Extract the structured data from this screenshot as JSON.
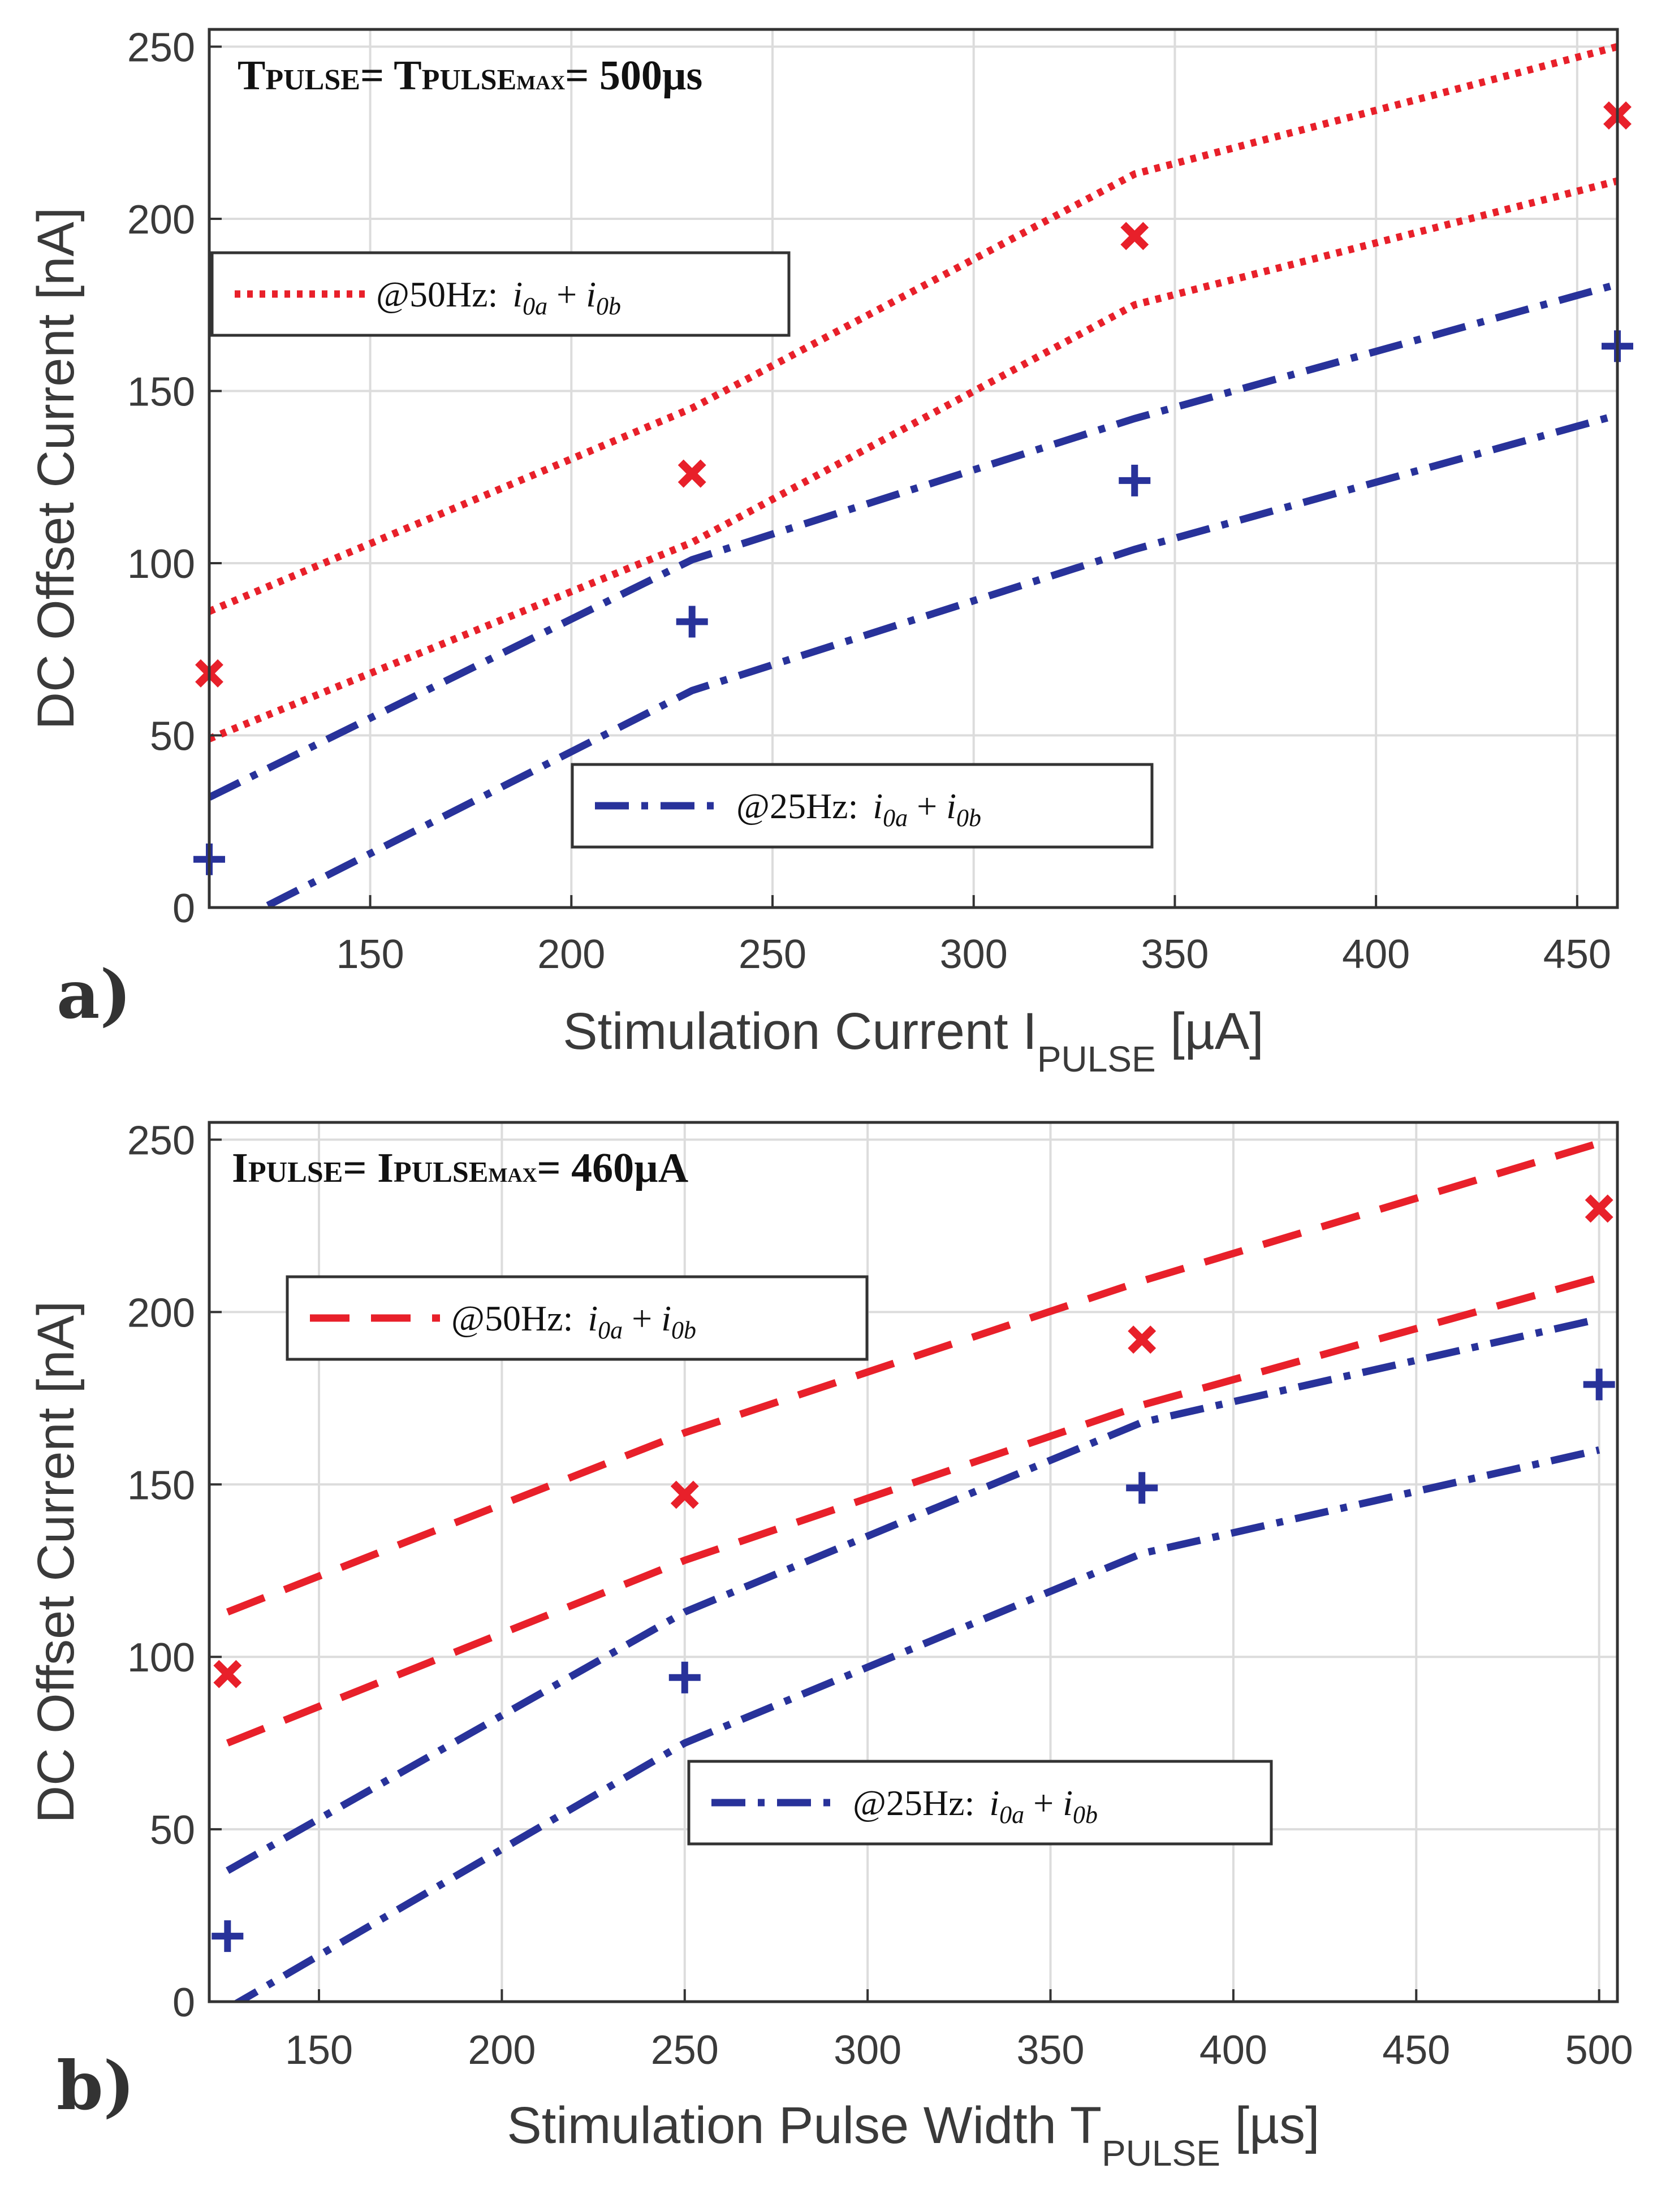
{
  "chart_data": [
    {
      "panel_label": "a)",
      "type": "line",
      "title": {
        "parts": [
          [
            "T",
            74
          ],
          [
            "PULSE",
            52
          ],
          [
            "= T",
            74
          ],
          [
            "PULSE",
            52
          ],
          [
            "MAX",
            36
          ],
          [
            "= 500µs",
            74
          ]
        ]
      },
      "xlabel": {
        "main": "Stimulation Current I",
        "sub": "PULSE",
        "unit": " [µA]"
      },
      "ylabel": "DC Offset Current [nA]",
      "xlim": [
        110,
        460
      ],
      "ylim": [
        0,
        255
      ],
      "x_ticks": [
        150,
        200,
        250,
        300,
        350,
        400,
        450
      ],
      "y_ticks": [
        0,
        50,
        100,
        150,
        200,
        250
      ],
      "grid": true,
      "series": [
        {
          "name": "@50Hz upper",
          "style": "dotted",
          "color": "#e8202a",
          "x": [
            110,
            230,
            340,
            460
          ],
          "y": [
            86,
            145,
            213,
            250
          ]
        },
        {
          "name": "@50Hz lower",
          "style": "dotted",
          "color": "#e8202a",
          "x": [
            110,
            230,
            340,
            460
          ],
          "y": [
            49,
            106,
            175,
            211
          ]
        },
        {
          "name": "@25Hz upper",
          "style": "dashdot",
          "color": "#28329a",
          "x": [
            110,
            230,
            340,
            460
          ],
          "y": [
            32,
            101,
            142,
            181
          ]
        },
        {
          "name": "@25Hz lower",
          "style": "dashdot",
          "color": "#28329a",
          "x": [
            110,
            230,
            340,
            460
          ],
          "y": [
            -8,
            63,
            104,
            143
          ]
        }
      ],
      "markers": [
        {
          "name": "@50Hz measured",
          "shape": "x",
          "color": "#e8202a",
          "x": [
            110,
            230,
            340,
            460
          ],
          "y": [
            68,
            126,
            195,
            230
          ]
        },
        {
          "name": "@25Hz measured",
          "shape": "+",
          "color": "#28329a",
          "x": [
            110,
            230,
            340,
            460
          ],
          "y": [
            14,
            83,
            124,
            163
          ]
        }
      ],
      "legends": [
        {
          "label": "@50Hz:",
          "math": [
            "i",
            "0a",
            " + ",
            "i",
            "0b"
          ],
          "style": "dotted",
          "color": "#e8202a",
          "placement": "upper-left"
        },
        {
          "label": "@25Hz:",
          "math": [
            "i",
            "0a",
            " + ",
            "i",
            "0b"
          ],
          "style": "dashdot",
          "color": "#28329a",
          "placement": "lower-center"
        }
      ]
    },
    {
      "panel_label": "b)",
      "type": "line",
      "title": {
        "parts": [
          [
            "I",
            74
          ],
          [
            "PULSE",
            52
          ],
          [
            "= I",
            74
          ],
          [
            "PULSE",
            52
          ],
          [
            "MAX",
            36
          ],
          [
            "= 460µA",
            74
          ]
        ]
      },
      "xlabel": {
        "main": "Stimulation Pulse Width T",
        "sub": "PULSE",
        "unit": " [µs]"
      },
      "ylabel": "DC Offset Current [nA]",
      "xlim": [
        120,
        505
      ],
      "ylim": [
        0,
        255
      ],
      "x_ticks": [
        150,
        200,
        250,
        300,
        350,
        400,
        450,
        500
      ],
      "y_ticks": [
        0,
        50,
        100,
        150,
        200,
        250
      ],
      "grid": true,
      "series": [
        {
          "name": "@50Hz upper",
          "style": "dashed",
          "color": "#e8202a",
          "x": [
            125,
            250,
            375,
            500
          ],
          "y": [
            113,
            165,
            209,
            249
          ]
        },
        {
          "name": "@50Hz lower",
          "style": "dashed",
          "color": "#e8202a",
          "x": [
            125,
            250,
            375,
            500
          ],
          "y": [
            75,
            128,
            173,
            210
          ]
        },
        {
          "name": "@25Hz upper",
          "style": "dashdot",
          "color": "#28329a",
          "x": [
            125,
            250,
            375,
            500
          ],
          "y": [
            38,
            113,
            168,
            198
          ]
        },
        {
          "name": "@25Hz lower",
          "style": "dashdot",
          "color": "#28329a",
          "x": [
            125,
            250,
            375,
            500
          ],
          "y": [
            -2,
            75,
            130,
            160
          ]
        }
      ],
      "markers": [
        {
          "name": "@50Hz measured",
          "shape": "x",
          "color": "#e8202a",
          "x": [
            125,
            250,
            375,
            500
          ],
          "y": [
            95,
            147,
            192,
            230
          ]
        },
        {
          "name": "@25Hz measured",
          "shape": "+",
          "color": "#28329a",
          "x": [
            125,
            250,
            375,
            500
          ],
          "y": [
            19,
            94,
            149,
            179
          ]
        }
      ],
      "legends": [
        {
          "label": "@50Hz:",
          "math": [
            "i",
            "0a",
            " + ",
            "i",
            "0b"
          ],
          "style": "dashed",
          "color": "#e8202a",
          "placement": "upper-left"
        },
        {
          "label": "@25Hz:",
          "math": [
            "i",
            "0a",
            " + ",
            "i",
            "0b"
          ],
          "style": "dashdot",
          "color": "#28329a",
          "placement": "lower-center"
        }
      ]
    }
  ]
}
